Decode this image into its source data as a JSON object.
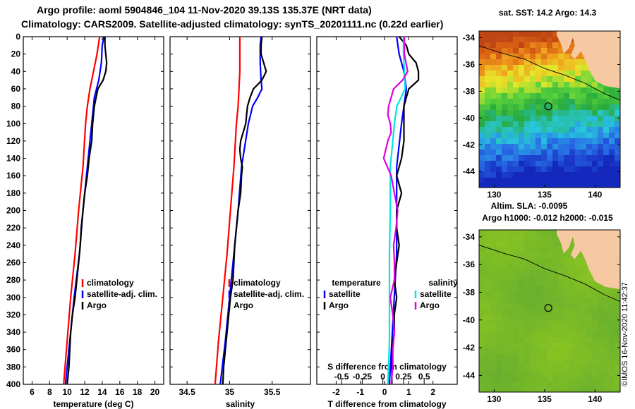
{
  "header": {
    "title_line1": "Argo profile: aoml 5904846_104 11-Nov-2020 39.13S 135.37E (NRT data)",
    "title_line2": "Climatology: CARS2009. Satellite-adjusted climatology: synTS_20201111.nc (0.22d earlier)"
  },
  "colors": {
    "climatology": "#ff0000",
    "satellite": "#0000ff",
    "argo": "#000000",
    "sat_salinity": "#00e5e5",
    "argo_salinity": "#e000e0"
  },
  "chart_data": [
    {
      "type": "line",
      "id": "temperature",
      "xlabel": "temperature (deg C)",
      "ylabel": "",
      "xlim": [
        5,
        21
      ],
      "ylim": [
        400,
        0
      ],
      "xticks": [
        "6",
        "8",
        "10",
        "12",
        "14",
        "16",
        "18",
        "20"
      ],
      "xtick_values": [
        6,
        8,
        10,
        12,
        14,
        16,
        18,
        20
      ],
      "yticks": [
        "0",
        "20",
        "40",
        "60",
        "80",
        "100",
        "120",
        "140",
        "160",
        "180",
        "200",
        "220",
        "240",
        "260",
        "280",
        "300",
        "320",
        "340",
        "360",
        "380",
        "400"
      ],
      "legend": [
        {
          "name": "climatology",
          "color": "#ff0000"
        },
        {
          "name": "satellite-adj. clim.",
          "color": "#0000ff"
        },
        {
          "name": "Argo",
          "color": "#000000"
        }
      ],
      "series": [
        {
          "name": "climatology",
          "color": "#ff0000",
          "depth": [
            0,
            20,
            40,
            60,
            80,
            100,
            150,
            200,
            250,
            300,
            350,
            400
          ],
          "values": [
            13.7,
            13.4,
            13.0,
            12.6,
            12.3,
            12.1,
            11.8,
            11.3,
            10.9,
            10.4,
            10.0,
            9.6
          ]
        },
        {
          "name": "satellite-adj. clim.",
          "color": "#0000ff",
          "depth": [
            0,
            10,
            30,
            50,
            70,
            100,
            150,
            200,
            250,
            300,
            350,
            400
          ],
          "values": [
            14.2,
            14.0,
            13.9,
            13.6,
            13.1,
            12.8,
            12.3,
            11.8,
            11.4,
            10.8,
            10.3,
            9.8
          ]
        },
        {
          "name": "Argo",
          "color": "#000000",
          "depth": [
            0,
            10,
            20,
            30,
            40,
            50,
            60,
            70,
            80,
            90,
            100,
            120,
            140,
            160,
            180,
            200,
            220,
            240,
            260,
            280,
            300,
            320,
            340,
            360,
            380,
            400
          ],
          "values": [
            14.3,
            14.3,
            14.4,
            14.5,
            14.4,
            14.1,
            13.5,
            13.3,
            13.1,
            13.0,
            12.9,
            12.8,
            12.5,
            12.3,
            12.0,
            11.8,
            11.6,
            11.5,
            11.3,
            11.1,
            10.9,
            10.6,
            10.4,
            10.3,
            10.2,
            10.0
          ]
        }
      ]
    },
    {
      "type": "line",
      "id": "salinity",
      "xlabel": "salinity",
      "xlim": [
        34.3,
        35.95
      ],
      "ylim": [
        400,
        0
      ],
      "xticks": [
        "34.5",
        "35",
        "35.5"
      ],
      "xtick_values": [
        34.5,
        35,
        35.5
      ],
      "legend": [
        {
          "name": "climatology",
          "color": "#ff0000"
        },
        {
          "name": "satellite-adj. clim.",
          "color": "#0000ff"
        },
        {
          "name": "Argo",
          "color": "#000000"
        }
      ],
      "series": [
        {
          "name": "climatology",
          "color": "#ff0000",
          "depth": [
            0,
            20,
            40,
            60,
            80,
            100,
            150,
            200,
            250,
            300,
            350,
            400
          ],
          "values": [
            35.12,
            35.12,
            35.12,
            35.11,
            35.1,
            35.08,
            35.05,
            35.01,
            34.97,
            34.92,
            34.87,
            34.83
          ]
        },
        {
          "name": "satellite-adj. clim.",
          "color": "#0000ff",
          "depth": [
            0,
            10,
            30,
            50,
            60,
            70,
            80,
            100,
            150,
            200,
            250,
            300,
            350,
            400
          ],
          "values": [
            35.37,
            35.36,
            35.36,
            35.37,
            35.38,
            35.33,
            35.27,
            35.22,
            35.14,
            35.1,
            35.05,
            35.0,
            34.95,
            34.89
          ]
        },
        {
          "name": "Argo",
          "color": "#000000",
          "depth": [
            0,
            10,
            20,
            30,
            40,
            50,
            60,
            70,
            80,
            90,
            100,
            110,
            120,
            130,
            140,
            150,
            160,
            180,
            200,
            220,
            240,
            260,
            280,
            300,
            320,
            340,
            360,
            380,
            400
          ],
          "values": [
            35.38,
            35.37,
            35.37,
            35.4,
            35.43,
            35.38,
            35.28,
            35.24,
            35.21,
            35.2,
            35.19,
            35.16,
            35.13,
            35.12,
            35.13,
            35.15,
            35.14,
            35.13,
            35.1,
            35.08,
            35.06,
            35.05,
            35.04,
            35.01,
            34.99,
            34.97,
            34.95,
            34.93,
            34.92
          ]
        }
      ]
    },
    {
      "type": "line",
      "id": "difference",
      "xlabel": "T difference from climatology",
      "xlabel_top": "S difference from climatology",
      "xlim": [
        -2.8,
        3.0
      ],
      "xlim_top": [
        -0.8,
        0.9
      ],
      "ylim": [
        400,
        0
      ],
      "xticks": [
        "-2",
        "-1",
        "0",
        "1",
        "2"
      ],
      "xtick_values": [
        -2,
        -1,
        0,
        1,
        2
      ],
      "xticks_top": [
        "-0.5",
        "-0.25",
        "0",
        "0.25",
        "0.5"
      ],
      "xtick_values_top": [
        -0.5,
        -0.25,
        0,
        0.25,
        0.5
      ],
      "legend_temperature_title": "temperature",
      "legend_salinity_title": "salinity",
      "legend": [
        {
          "name": "satellite",
          "color": "#0000ff",
          "group": "temperature"
        },
        {
          "name": "Argo",
          "color": "#000000",
          "group": "temperature"
        },
        {
          "name": "satellite",
          "color": "#00e5e5",
          "group": "salinity"
        },
        {
          "name": "Argo",
          "color": "#e000e0",
          "group": "salinity"
        }
      ],
      "series": [
        {
          "name": "T satellite",
          "color": "#0000ff",
          "axis": "T",
          "depth": [
            0,
            20,
            40,
            60,
            80,
            100,
            150,
            200,
            250,
            300,
            350,
            400
          ],
          "values": [
            0.5,
            0.6,
            0.8,
            0.9,
            0.8,
            0.7,
            0.5,
            0.5,
            0.5,
            0.4,
            0.3,
            0.2
          ]
        },
        {
          "name": "T Argo",
          "color": "#000000",
          "axis": "T",
          "depth": [
            0,
            10,
            20,
            30,
            40,
            50,
            60,
            70,
            80,
            100,
            120,
            140,
            160,
            180,
            200,
            220,
            240,
            260,
            280,
            300,
            320,
            340,
            360,
            380,
            400
          ],
          "values": [
            0.6,
            0.9,
            1.0,
            1.3,
            1.4,
            1.4,
            1.0,
            0.9,
            0.8,
            0.8,
            0.8,
            0.7,
            0.5,
            0.7,
            0.5,
            0.5,
            0.6,
            0.5,
            0.4,
            0.5,
            0.4,
            0.4,
            0.3,
            0.3,
            0.3
          ]
        },
        {
          "name": "S satellite",
          "color": "#00e5e5",
          "axis": "S",
          "depth": [
            0,
            20,
            40,
            60,
            70,
            80,
            100,
            120,
            150,
            200,
            250,
            300,
            350,
            400
          ],
          "values": [
            0.25,
            0.25,
            0.26,
            0.27,
            0.22,
            0.17,
            0.14,
            0.12,
            0.09,
            0.09,
            0.08,
            0.08,
            0.08,
            0.06
          ]
        },
        {
          "name": "S Argo",
          "color": "#e000e0",
          "axis": "S",
          "depth": [
            0,
            20,
            40,
            50,
            60,
            70,
            80,
            90,
            100,
            110,
            120,
            140,
            160,
            180,
            200,
            220,
            240,
            260,
            280,
            300,
            320,
            340,
            360,
            380,
            400
          ],
          "values": [
            0.26,
            0.26,
            0.3,
            0.24,
            0.13,
            0.1,
            0.07,
            0.06,
            0.09,
            0.1,
            0.06,
            0.01,
            0.1,
            0.14,
            0.18,
            0.16,
            0.13,
            0.14,
            0.14,
            0.09,
            0.12,
            0.14,
            0.12,
            0.12,
            0.1
          ]
        }
      ]
    }
  ],
  "maps": {
    "sst_title": "sat. SST: 14.2 Argo: 14.3",
    "sla_title_line1": "Altim. SLA: -0.0095",
    "sla_title_line2": "Argo h1000: -0.012 h2000: -0.015",
    "lon_ticks": [
      "130",
      "135",
      "140"
    ],
    "lat_ticks": [
      "-34",
      "-36",
      "-38",
      "-40",
      "-42",
      "-44"
    ],
    "argo_position": {
      "lon": 135.37,
      "lat": -39.13
    },
    "lon_range": [
      128.5,
      142.5
    ],
    "lat_range": [
      -45.2,
      -33.5
    ]
  },
  "footer": {
    "stamp": "©IMOS 16-Nov-2020 11:42:37"
  }
}
